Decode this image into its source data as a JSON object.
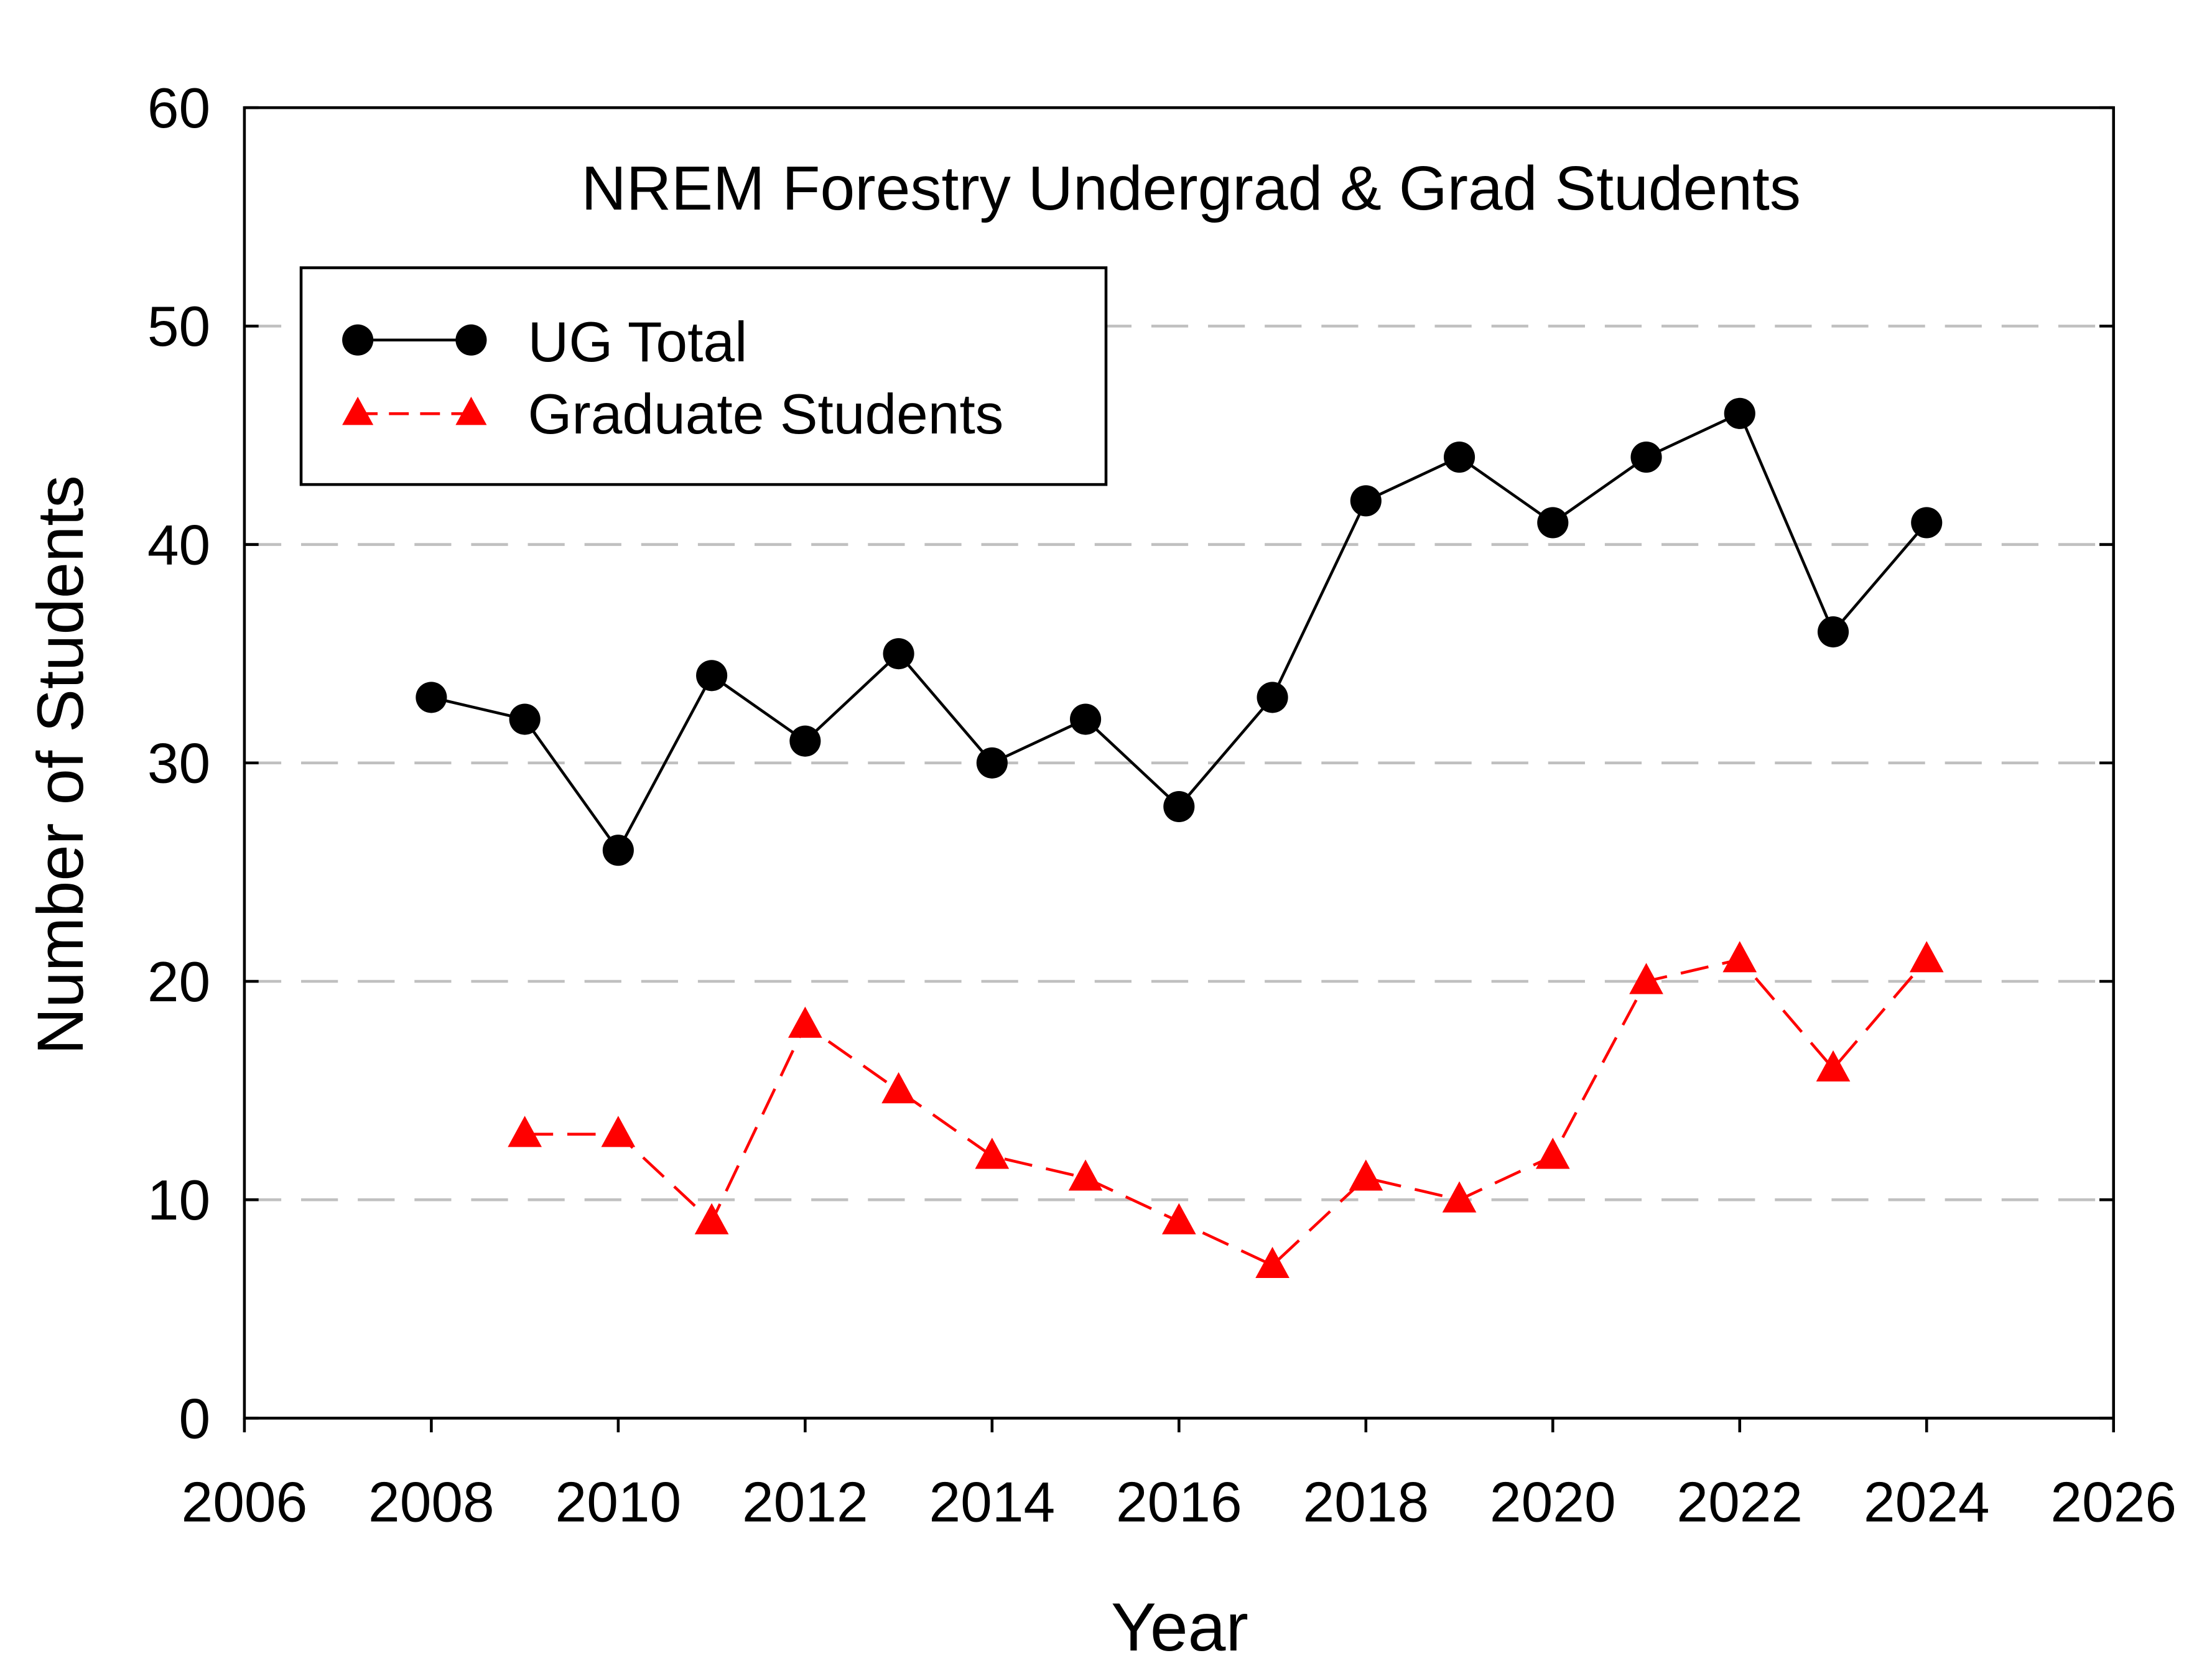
{
  "chart_data": {
    "type": "line",
    "title": "NREM Forestry Undergrad & Grad Students",
    "xlabel": "Year",
    "ylabel": "Number of Students",
    "xlim": [
      2006,
      2026
    ],
    "ylim": [
      0,
      60
    ],
    "xticks": [
      2006,
      2008,
      2010,
      2012,
      2014,
      2016,
      2018,
      2020,
      2022,
      2024,
      2026
    ],
    "yticks": [
      0,
      10,
      20,
      30,
      40,
      50,
      60
    ],
    "grid": "horizontal dashed at 10, 20, 30, 40, 50",
    "legend_position": "top-left",
    "series": [
      {
        "name": "UG Total",
        "color": "#000000",
        "marker": "circle",
        "line": "solid",
        "x": [
          2008,
          2009,
          2010,
          2011,
          2012,
          2013,
          2014,
          2015,
          2016,
          2017,
          2018,
          2019,
          2020,
          2021,
          2022,
          2023,
          2024
        ],
        "values": [
          33,
          32,
          26,
          34,
          31,
          35,
          30,
          32,
          28,
          33,
          42,
          44,
          41,
          44,
          46,
          36,
          41
        ]
      },
      {
        "name": "Graduate Students",
        "color": "#ff0000",
        "marker": "triangle",
        "line": "dashed",
        "x": [
          2009,
          2010,
          2011,
          2012,
          2013,
          2014,
          2015,
          2016,
          2017,
          2018,
          2019,
          2020,
          2021,
          2022,
          2023,
          2024
        ],
        "values": [
          13,
          13,
          9,
          18,
          15,
          12,
          11,
          9,
          7,
          11,
          10,
          12,
          20,
          21,
          16,
          21
        ]
      }
    ]
  }
}
